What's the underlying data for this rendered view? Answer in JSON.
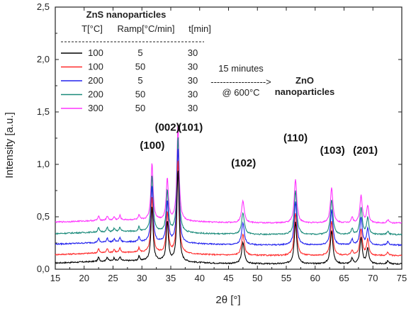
{
  "chart_data": {
    "type": "line",
    "xlabel": "2θ [°]",
    "ylabel": "Intensity [a.u.]",
    "xlim": [
      15,
      75
    ],
    "ylim": [
      0,
      2.5
    ],
    "x_ticks": [
      "15",
      "20",
      "25",
      "30",
      "35",
      "40",
      "45",
      "50",
      "55",
      "60",
      "65",
      "70",
      "75"
    ],
    "y_ticks": [
      "0,0",
      "0,5",
      "1,0",
      "1,5",
      "2,0",
      "2,5"
    ],
    "legend": {
      "title": "ZnS nanoparticles",
      "headers": [
        "T[°C]",
        "Ramp[°C/min]",
        "t[min]"
      ],
      "rows": [
        [
          "100",
          "5",
          "30"
        ],
        [
          "100",
          "50",
          "30"
        ],
        [
          "200",
          "5",
          "30"
        ],
        [
          "200",
          "50",
          "30"
        ],
        [
          "300",
          "50",
          "30"
        ]
      ]
    },
    "annotation": {
      "line1": "15 minutes",
      "arrow": "------------------>",
      "line2": "@ 600°C",
      "product_line1": "ZnO",
      "product_line2": "nanoparticles"
    },
    "peak_labels": [
      {
        "text": "(100)",
        "x": 31.8,
        "y": 1.15
      },
      {
        "text": "(002)",
        "x": 34.4,
        "y": 1.32
      },
      {
        "text": "(101)",
        "x": 38.4,
        "y": 1.32
      },
      {
        "text": "(102)",
        "x": 47.6,
        "y": 0.98
      },
      {
        "text": "(110)",
        "x": 56.6,
        "y": 1.22
      },
      {
        "text": "(103)",
        "x": 63.0,
        "y": 1.1
      },
      {
        "text": "(201)",
        "x": 68.7,
        "y": 1.1
      }
    ],
    "peaks": [
      {
        "x": 22.5,
        "h": 0.04,
        "w": 0.15
      },
      {
        "x": 24.0,
        "h": 0.04,
        "w": 0.15
      },
      {
        "x": 25.2,
        "h": 0.03,
        "w": 0.15
      },
      {
        "x": 26.2,
        "h": 0.04,
        "w": 0.15
      },
      {
        "x": 29.5,
        "h": 0.04,
        "w": 0.15
      },
      {
        "x": 31.75,
        "h": 0.52,
        "w": 0.22
      },
      {
        "x": 34.4,
        "h": 0.38,
        "w": 0.22
      },
      {
        "x": 36.25,
        "h": 0.88,
        "w": 0.22
      },
      {
        "x": 47.5,
        "h": 0.2,
        "w": 0.28
      },
      {
        "x": 56.6,
        "h": 0.4,
        "w": 0.26
      },
      {
        "x": 62.85,
        "h": 0.32,
        "w": 0.26
      },
      {
        "x": 66.4,
        "h": 0.05,
        "w": 0.2
      },
      {
        "x": 67.95,
        "h": 0.25,
        "w": 0.24
      },
      {
        "x": 69.1,
        "h": 0.15,
        "w": 0.22
      },
      {
        "x": 72.6,
        "h": 0.03,
        "w": 0.2
      }
    ],
    "series": [
      {
        "color": "#000000",
        "baseline": 0.05,
        "scale": 1.0,
        "legend_row": 0
      },
      {
        "color": "#ff2a2a",
        "baseline": 0.13,
        "scale": 1.02,
        "legend_row": 1
      },
      {
        "color": "#2222ee",
        "baseline": 0.23,
        "scale": 1.04,
        "legend_row": 2
      },
      {
        "color": "#1a8a7a",
        "baseline": 0.33,
        "scale": 1.04,
        "legend_row": 3
      },
      {
        "color": "#ff33ff",
        "baseline": 0.44,
        "scale": 1.05,
        "legend_row": 4
      }
    ]
  }
}
